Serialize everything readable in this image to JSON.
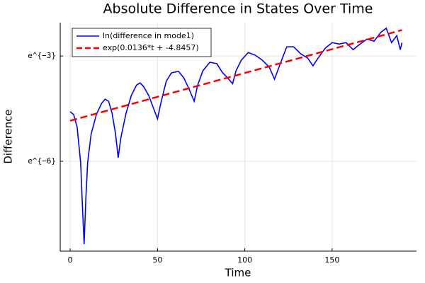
{
  "chart_data": {
    "type": "line",
    "title": "Absolute Difference in States Over Time",
    "xlabel": "Time",
    "ylabel": "Difference",
    "yscale": "log",
    "grid": true,
    "legend": "upper left",
    "xlim": [
      -5.7,
      198.3
    ],
    "xticks": [
      0,
      50,
      100,
      150
    ],
    "ylim": [
      0.000191,
      0.1287
    ],
    "yticks": [
      {
        "value": 0.049787,
        "label": "e^{−3}"
      },
      {
        "value": 0.0024788,
        "label": "e^{−6}"
      }
    ],
    "series": [
      {
        "name": "ln(difference in mode1)",
        "color": "#0000ff",
        "style": "solid",
        "x": [
          0,
          2,
          4,
          6,
          7,
          8,
          9,
          10,
          12,
          15,
          18,
          20,
          22,
          24,
          26,
          27.5,
          29,
          32,
          35,
          38,
          40,
          42,
          45,
          48,
          50,
          52,
          55,
          58,
          62,
          65,
          68,
          71,
          73,
          76,
          80,
          84,
          87,
          90,
          93,
          95,
          98,
          102,
          106,
          110,
          114,
          117,
          120,
          124,
          128,
          132,
          136,
          139,
          142,
          146,
          150,
          154,
          158,
          162,
          166,
          170,
          174,
          178,
          181,
          184,
          187,
          189,
          190
        ],
        "values": [
          0.01015,
          0.00937,
          0.00654,
          0.00238,
          0.000711,
          0.000234,
          0.000868,
          0.00238,
          0.00536,
          0.00937,
          0.0129,
          0.01455,
          0.0137,
          0.00975,
          0.00536,
          0.00274,
          0.0048,
          0.00975,
          0.0161,
          0.0217,
          0.0231,
          0.0209,
          0.0161,
          0.0108,
          0.00831,
          0.0132,
          0.0242,
          0.0308,
          0.0321,
          0.0268,
          0.0196,
          0.0137,
          0.0217,
          0.0327,
          0.0416,
          0.04,
          0.0314,
          0.0268,
          0.0226,
          0.0327,
          0.0442,
          0.055,
          0.0508,
          0.0442,
          0.0362,
          0.0257,
          0.0384,
          0.0646,
          0.0646,
          0.0529,
          0.0469,
          0.0376,
          0.0469,
          0.062,
          0.0728,
          0.0699,
          0.0728,
          0.0596,
          0.0699,
          0.0805,
          0.0758,
          0.0983,
          0.1097,
          0.0728,
          0.0889,
          0.0596,
          0.0728
        ]
      },
      {
        "name": "exp(0.0136*t + -4.8457)",
        "color": "#ff0000",
        "style": "dashed",
        "x": [
          0,
          190
        ],
        "values": [
          0.00786,
          0.1042
        ]
      }
    ]
  }
}
